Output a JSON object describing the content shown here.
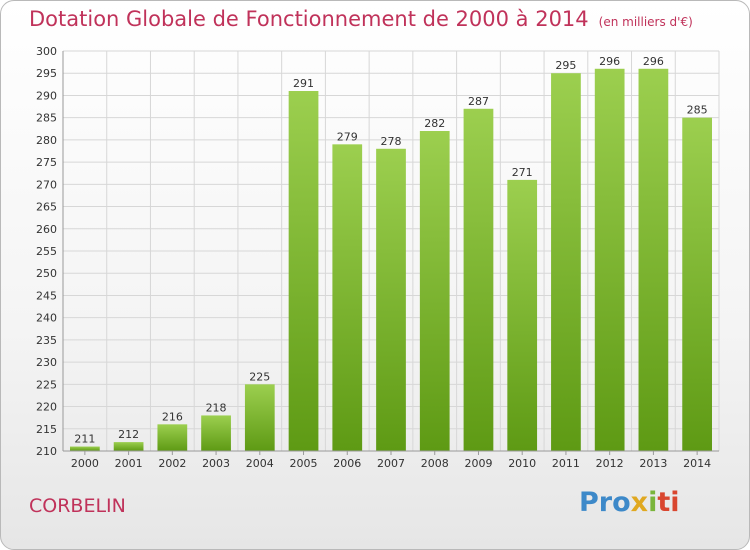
{
  "title": "Dotation Globale de Fonctionnement de 2000 à 2014",
  "subtitle": "(en milliers d'€)",
  "place": "CORBELIN",
  "logo": {
    "part1": "Pro",
    "part2": "x",
    "part3": "i",
    "part4": "ti"
  },
  "colors": {
    "bar_top": "#9ccf4f",
    "bar_bottom": "#5e9a14",
    "title": "#c0325a",
    "grid": "#d7d7d7"
  },
  "chart_data": {
    "type": "bar",
    "title": "Dotation Globale de Fonctionnement de 2000 à 2014",
    "subtitle": "(en milliers d'€)",
    "categories": [
      "2000",
      "2001",
      "2002",
      "2003",
      "2004",
      "2005",
      "2006",
      "2007",
      "2008",
      "2009",
      "2010",
      "2011",
      "2012",
      "2013",
      "2014"
    ],
    "values": [
      211,
      212,
      216,
      218,
      225,
      291,
      279,
      278,
      282,
      287,
      271,
      295,
      296,
      296,
      285
    ],
    "ylim": [
      210,
      300
    ],
    "ytick_step": 5,
    "grid": true,
    "legend": "none"
  }
}
